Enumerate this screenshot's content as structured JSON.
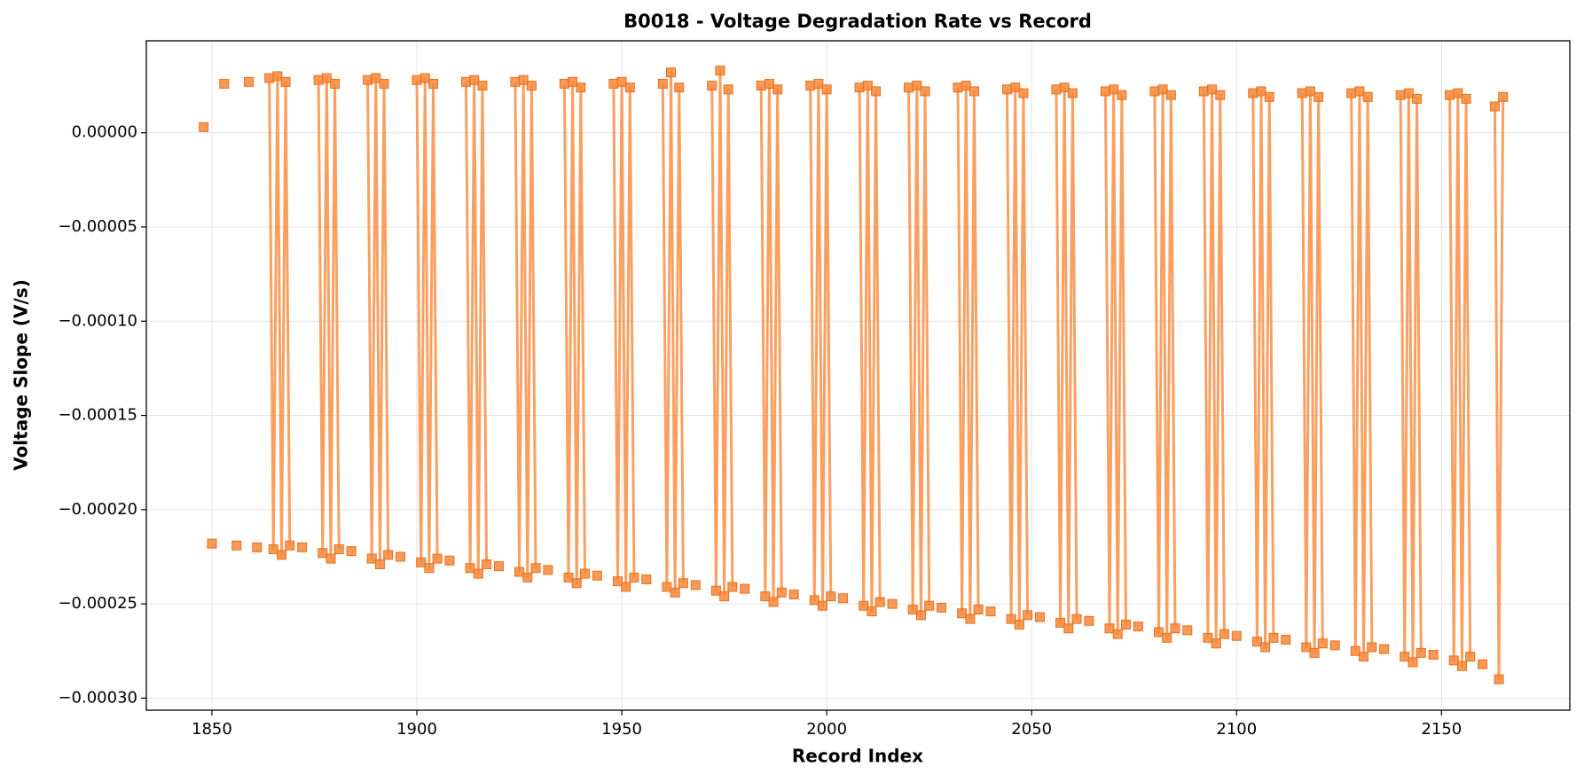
{
  "chart_data": {
    "type": "line",
    "title": "B0018 - Voltage Degradation Rate vs Record",
    "x_label": "Record Index",
    "y_label": "Voltage Slope (V/s)",
    "xlim": [
      1834,
      2181.3
    ],
    "ylim": [
      -0.0003064,
      4.88e-05
    ],
    "xticks": [
      1850,
      1900,
      1950,
      2000,
      2050,
      2100,
      2150
    ],
    "yticks": [
      {
        "value": 0,
        "label": "0.00000"
      },
      {
        "value": -5e-05,
        "label": "−0.00005"
      },
      {
        "value": -0.0001,
        "label": "−0.00010"
      },
      {
        "value": -0.00015,
        "label": "−0.00015"
      },
      {
        "value": -0.0002,
        "label": "−0.00020"
      },
      {
        "value": -0.00025,
        "label": "−0.00025"
      },
      {
        "value": -0.0003,
        "label": "−0.00030"
      }
    ],
    "grid": true,
    "marker": "square",
    "x": [
      1848,
      1849,
      1850,
      1851,
      1853,
      1854,
      1856,
      1857,
      1859,
      1860,
      1861,
      1862,
      1864,
      1865,
      1866,
      1867,
      1868,
      1869,
      1870,
      1872,
      1874,
      1876,
      1877,
      1878,
      1879,
      1880,
      1881,
      1882,
      1884,
      1886,
      1888,
      1889,
      1890,
      1891,
      1892,
      1893,
      1894,
      1896,
      1898,
      1900,
      1901,
      1902,
      1903,
      1904,
      1905,
      1906,
      1908,
      1910,
      1912,
      1913,
      1914,
      1915,
      1916,
      1917,
      1918,
      1920,
      1922,
      1924,
      1925,
      1926,
      1927,
      1928,
      1929,
      1930,
      1932,
      1934,
      1936,
      1937,
      1938,
      1939,
      1940,
      1941,
      1942,
      1944,
      1946,
      1948,
      1949,
      1950,
      1951,
      1952,
      1953,
      1954,
      1956,
      1958,
      1960,
      1961,
      1962,
      1963,
      1964,
      1965,
      1966,
      1968,
      1970,
      1972,
      1973,
      1974,
      1975,
      1976,
      1977,
      1978,
      1980,
      1982,
      1984,
      1985,
      1986,
      1987,
      1988,
      1989,
      1990,
      1992,
      1994,
      1996,
      1997,
      1998,
      1999,
      2000,
      2001,
      2002,
      2004,
      2006,
      2008,
      2009,
      2010,
      2011,
      2012,
      2013,
      2014,
      2016,
      2018,
      2020,
      2021,
      2022,
      2023,
      2024,
      2025,
      2026,
      2028,
      2030,
      2032,
      2033,
      2034,
      2035,
      2036,
      2037,
      2038,
      2040,
      2042,
      2044,
      2045,
      2046,
      2047,
      2048,
      2049,
      2050,
      2052,
      2054,
      2056,
      2057,
      2058,
      2059,
      2060,
      2061,
      2062,
      2064,
      2066,
      2068,
      2069,
      2070,
      2071,
      2072,
      2073,
      2074,
      2076,
      2078,
      2080,
      2081,
      2082,
      2083,
      2084,
      2085,
      2086,
      2088,
      2090,
      2092,
      2093,
      2094,
      2095,
      2096,
      2097,
      2098,
      2100,
      2102,
      2104,
      2105,
      2106,
      2107,
      2108,
      2109,
      2110,
      2112,
      2114,
      2116,
      2117,
      2118,
      2119,
      2120,
      2121,
      2122,
      2124,
      2126,
      2128,
      2129,
      2130,
      2131,
      2132,
      2133,
      2134,
      2136,
      2138,
      2140,
      2141,
      2142,
      2143,
      2144,
      2145,
      2146,
      2148,
      2150,
      2152,
      2153,
      2154,
      2155,
      2156,
      2157,
      2158,
      2160,
      2162,
      2163,
      2164,
      2165
    ],
    "series": [
      {
        "name": "Voltage Slope",
        "color": "#f7883a",
        "values": [
          3e-06,
          null,
          -0.000218,
          null,
          2.6e-05,
          null,
          -0.000219,
          null,
          2.7e-05,
          null,
          -0.00022,
          null,
          2.9e-05,
          -0.000221,
          3e-05,
          -0.000224,
          2.7e-05,
          -0.000219,
          null,
          -0.00022,
          null,
          2.8e-05,
          -0.000223,
          2.9e-05,
          -0.000226,
          2.6e-05,
          -0.000221,
          null,
          -0.000222,
          null,
          2.8e-05,
          -0.000226,
          2.9e-05,
          -0.000229,
          2.6e-05,
          -0.000224,
          null,
          -0.000225,
          null,
          2.8e-05,
          -0.000228,
          2.9e-05,
          -0.000231,
          2.6e-05,
          -0.000226,
          null,
          -0.000227,
          null,
          2.7e-05,
          -0.000231,
          2.8e-05,
          -0.000234,
          2.5e-05,
          -0.000229,
          null,
          -0.00023,
          null,
          2.7e-05,
          -0.000233,
          2.8e-05,
          -0.000236,
          2.5e-05,
          -0.000231,
          null,
          -0.000232,
          null,
          2.6e-05,
          -0.000236,
          2.7e-05,
          -0.000239,
          2.4e-05,
          -0.000234,
          null,
          -0.000235,
          null,
          2.6e-05,
          -0.000238,
          2.7e-05,
          -0.000241,
          2.4e-05,
          -0.000236,
          null,
          -0.000237,
          null,
          2.6e-05,
          -0.000241,
          3.2e-05,
          -0.000244,
          2.4e-05,
          -0.000239,
          null,
          -0.00024,
          null,
          2.5e-05,
          -0.000243,
          3.3e-05,
          -0.000246,
          2.3e-05,
          -0.000241,
          null,
          -0.000242,
          null,
          2.5e-05,
          -0.000246,
          2.6e-05,
          -0.000249,
          2.3e-05,
          -0.000244,
          null,
          -0.000245,
          null,
          2.5e-05,
          -0.000248,
          2.6e-05,
          -0.000251,
          2.3e-05,
          -0.000246,
          null,
          -0.000247,
          null,
          2.4e-05,
          -0.000251,
          2.5e-05,
          -0.000254,
          2.2e-05,
          -0.000249,
          null,
          -0.00025,
          null,
          2.4e-05,
          -0.000253,
          2.5e-05,
          -0.000256,
          2.2e-05,
          -0.000251,
          null,
          -0.000252,
          null,
          2.4e-05,
          -0.000255,
          2.5e-05,
          -0.000258,
          2.2e-05,
          -0.000253,
          null,
          -0.000254,
          null,
          2.3e-05,
          -0.000258,
          2.4e-05,
          -0.000261,
          2.1e-05,
          -0.000256,
          null,
          -0.000257,
          null,
          2.3e-05,
          -0.00026,
          2.4e-05,
          -0.000263,
          2.1e-05,
          -0.000258,
          null,
          -0.000259,
          null,
          2.2e-05,
          -0.000263,
          2.3e-05,
          -0.000266,
          2e-05,
          -0.000261,
          null,
          -0.000262,
          null,
          2.2e-05,
          -0.000265,
          2.3e-05,
          -0.000268,
          2e-05,
          -0.000263,
          null,
          -0.000264,
          null,
          2.2e-05,
          -0.000268,
          2.3e-05,
          -0.000271,
          2e-05,
          -0.000266,
          null,
          -0.000267,
          null,
          2.1e-05,
          -0.00027,
          2.2e-05,
          -0.000273,
          1.9e-05,
          -0.000268,
          null,
          -0.000269,
          null,
          2.1e-05,
          -0.000273,
          2.2e-05,
          -0.000276,
          1.9e-05,
          -0.000271,
          null,
          -0.000272,
          null,
          2.1e-05,
          -0.000275,
          2.2e-05,
          -0.000278,
          1.9e-05,
          -0.000273,
          null,
          -0.000274,
          null,
          2e-05,
          -0.000278,
          2.1e-05,
          -0.000281,
          1.8e-05,
          -0.000276,
          null,
          -0.000277,
          null,
          2e-05,
          -0.00028,
          2.1e-05,
          -0.000283,
          1.8e-05,
          -0.000278,
          null,
          -0.000282,
          null,
          1.4e-05,
          -0.00029,
          1.9e-05
        ]
      }
    ]
  }
}
